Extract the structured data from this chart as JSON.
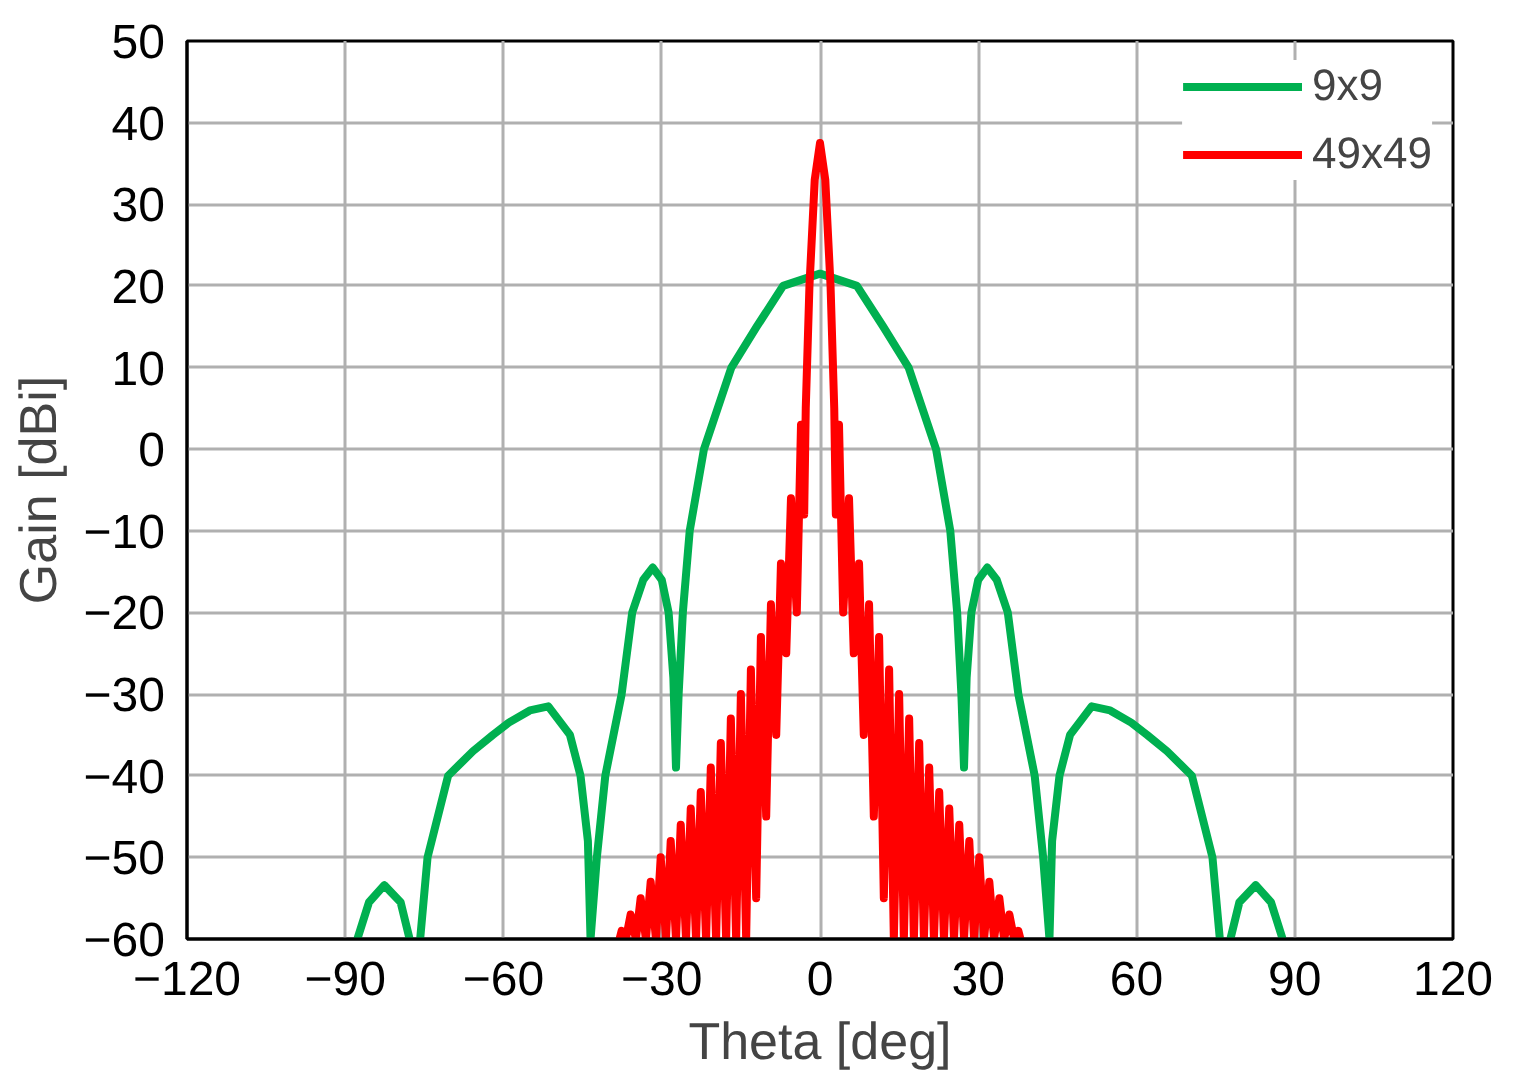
{
  "chart_data": {
    "type": "line",
    "xlabel": "Theta [deg]",
    "ylabel": "Gain [dBi]",
    "xlim": [
      -120,
      120
    ],
    "ylim": [
      -60,
      50
    ],
    "xticks": [
      -120,
      -90,
      -60,
      -30,
      0,
      30,
      60,
      90,
      120
    ],
    "yticks": [
      -60,
      -50,
      -40,
      -30,
      -20,
      -10,
      0,
      10,
      20,
      30,
      40,
      50
    ],
    "grid": true,
    "legend": "top right",
    "marker": "none",
    "line_style": "solid",
    "series": [
      {
        "name": "9x9",
        "color": "#00b050",
        "x": [
          -87.7,
          -85.5,
          -82.6,
          -79.5,
          -77.8,
          -76.8,
          -75.8,
          -74.4,
          -70.5,
          -65.8,
          -62,
          -59,
          -55,
          -51.5,
          -47.4,
          -45.4,
          -44,
          -43.5,
          -42.3,
          -40.7,
          -37.6,
          -35.6,
          -33.5,
          -31.7,
          -30,
          -28.7,
          -27.8,
          -27.3,
          -26.8,
          -26,
          -24.7,
          -22,
          -16.8,
          -12,
          -7,
          0,
          7,
          12,
          16.8,
          22,
          24.7,
          26,
          26.8,
          27.3,
          27.8,
          28.7,
          30,
          31.7,
          33.5,
          35.6,
          37.6,
          40.7,
          42.3,
          43.5,
          44,
          45.4,
          47.4,
          51.5,
          55,
          59,
          62,
          65.8,
          70.5,
          74.4,
          75.8,
          76.8,
          77.8,
          79.5,
          82.6,
          85.5,
          87.7
        ],
        "values": [
          -60,
          -55.5,
          -53.4,
          -55.5,
          -60,
          null,
          -60,
          -50,
          -40,
          -37,
          -35,
          -33.5,
          -32,
          -31.5,
          -35,
          -40,
          -48,
          -60,
          -50,
          -40,
          -30,
          -20,
          -16,
          -14.5,
          -16,
          -20,
          -28,
          -39,
          -30,
          -20,
          -10,
          0,
          10,
          15,
          20,
          21.5,
          20,
          15,
          10,
          0,
          -10,
          -20,
          -30,
          -39,
          -28,
          -20,
          -16,
          -14.5,
          -16,
          -20,
          -30,
          -40,
          -50,
          -60,
          -48,
          -40,
          -35,
          -31.5,
          -32,
          -33.5,
          -35,
          -37,
          -40,
          -50,
          -60,
          null,
          -60,
          -55.5,
          -53.4,
          -55.5,
          -60
        ]
      },
      {
        "name": "49x49",
        "color": "#ff0000",
        "x": [
          -38,
          -37.6,
          -36.8,
          -35.9,
          -34.9,
          -34.0,
          -33.0,
          -32.1,
          -31.1,
          -30.2,
          -29.2,
          -28.3,
          -27.3,
          -26.4,
          -25.4,
          -24.5,
          -23.5,
          -22.6,
          -21.6,
          -20.7,
          -19.7,
          -18.8,
          -17.8,
          -16.9,
          -15.9,
          -15.0,
          -14.0,
          -13.1,
          -12.1,
          -11.2,
          -10.2,
          -9.3,
          -8.3,
          -7.4,
          -6.4,
          -5.5,
          -4.4,
          -3.6,
          -3.0,
          -2.7,
          -2,
          -1,
          0,
          1,
          2,
          2.7,
          3.0,
          3.6,
          4.4,
          5.5,
          6.4,
          7.4,
          8.3,
          9.3,
          10.2,
          11.2,
          12.1,
          13.1,
          14.0,
          15.0,
          15.9,
          16.9,
          17.8,
          18.8,
          19.7,
          20.7,
          21.6,
          22.6,
          23.5,
          24.5,
          25.4,
          26.4,
          27.3,
          28.3,
          29.2,
          30.2,
          31.1,
          32.1,
          33.0,
          34.0,
          34.9,
          35.9,
          36.8,
          37.6,
          38
        ],
        "values": [
          -60,
          -59,
          -60,
          -57,
          -60,
          -55,
          -60,
          -53,
          -60,
          -50,
          -60,
          -48,
          -60,
          -46,
          -60,
          -44,
          -60,
          -42,
          -60,
          -39,
          -60,
          -36,
          -60,
          -33,
          -60,
          -30,
          -60,
          -27,
          -55,
          -23,
          -45,
          -19,
          -35,
          -14,
          -25,
          -6,
          -20,
          3,
          -8,
          5,
          20,
          33,
          37.5,
          33,
          20,
          5,
          -8,
          3,
          -20,
          -6,
          -25,
          -14,
          -35,
          -19,
          -45,
          -23,
          -55,
          -27,
          -60,
          -30,
          -60,
          -33,
          -60,
          -36,
          -60,
          -39,
          -60,
          -42,
          -60,
          -44,
          -60,
          -46,
          -60,
          -48,
          -60,
          -50,
          -60,
          -53,
          -60,
          -55,
          -60,
          -57,
          -60,
          -59,
          -60
        ]
      }
    ]
  }
}
